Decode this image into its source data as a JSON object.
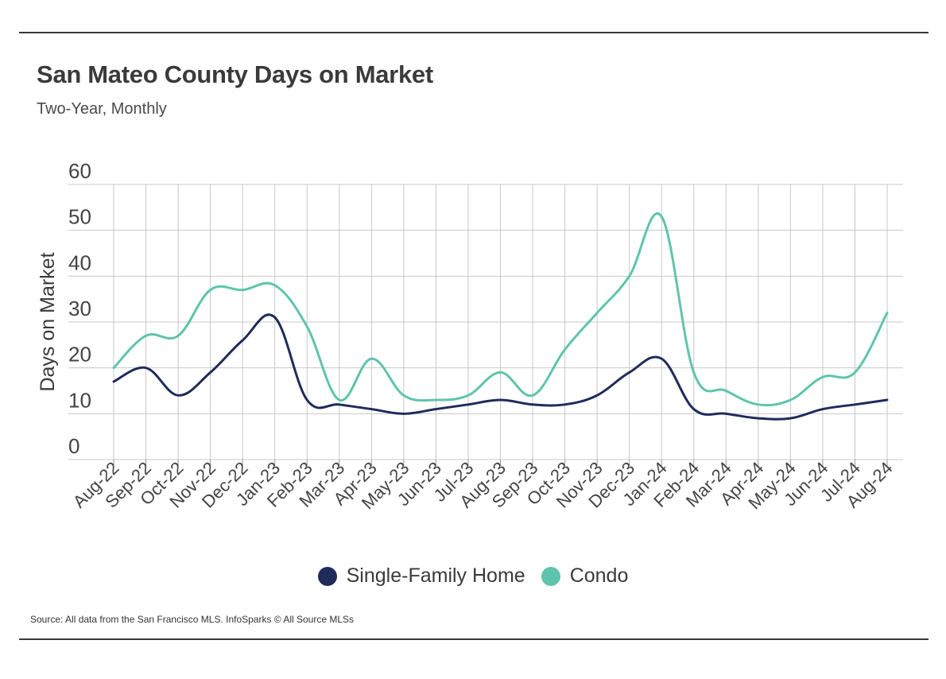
{
  "header": {
    "title": "San Mateo County Days on Market",
    "subtitle": "Two-Year, Monthly"
  },
  "footer": {
    "source": "Source:  All data from the San Francisco MLS. InfoSparks © All Source MLSs"
  },
  "colors": {
    "single_family": "#1f2b5b",
    "condo": "#5ec4ad",
    "grid": "#c8c8c8",
    "text": "#3a3a3a"
  },
  "chart_data": {
    "type": "line",
    "title": "San Mateo County Days on Market",
    "subtitle": "Two-Year, Monthly",
    "xlabel": "",
    "ylabel": "Days on Market",
    "ylim": [
      0,
      60
    ],
    "yticks": [
      0,
      10,
      20,
      30,
      40,
      50,
      60
    ],
    "grid": true,
    "legend_position": "bottom",
    "categories": [
      "Aug-22",
      "Sep-22",
      "Oct-22",
      "Nov-22",
      "Dec-22",
      "Jan-23",
      "Feb-23",
      "Mar-23",
      "Apr-23",
      "May-23",
      "Jun-23",
      "Jul-23",
      "Aug-23",
      "Sep-23",
      "Oct-23",
      "Nov-23",
      "Dec-23",
      "Jan-24",
      "Feb-24",
      "Mar-24",
      "Apr-24",
      "May-24",
      "Jun-24",
      "Jul-24",
      "Aug-24"
    ],
    "series": [
      {
        "name": "Single-Family Home",
        "color": "#1f2b5b",
        "values": [
          17,
          20,
          14,
          19,
          26,
          31,
          13,
          12,
          11,
          10,
          11,
          12,
          13,
          12,
          12,
          14,
          19,
          22,
          11,
          10,
          9,
          9,
          11,
          12,
          13
        ]
      },
      {
        "name": "Condo",
        "color": "#5ec4ad",
        "values": [
          20,
          27,
          27,
          37,
          37,
          38,
          29,
          13,
          22,
          14,
          13,
          14,
          19,
          14,
          24,
          32,
          40,
          53,
          19,
          15,
          12,
          13,
          18,
          19,
          32
        ]
      }
    ]
  }
}
